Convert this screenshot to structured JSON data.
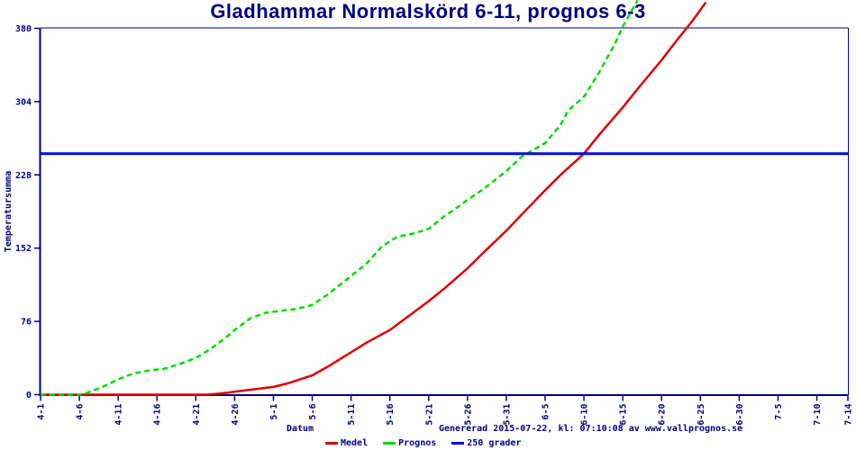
{
  "page": {
    "background": "#ffffff"
  },
  "chart_data": {
    "type": "line",
    "title": "Gladhammar Normalskörd 6-11, prognos 6-3",
    "xlabel": "Datum",
    "ylabel": "Temperatursumma",
    "footer": "Genererad 2015-07-22, kl: 07:10:08 av www.vallprognos.se",
    "ylim": [
      0,
      380
    ],
    "y_ticks": [
      0,
      76,
      152,
      228,
      304,
      380
    ],
    "x_axis_unit": "days since April 1",
    "x_tick_days": [
      0,
      5,
      10,
      15,
      20,
      25,
      30,
      35,
      40,
      45,
      50,
      55,
      60,
      65,
      70,
      75,
      80,
      85,
      90,
      95,
      100,
      104
    ],
    "x_tick_labels": [
      "4-1",
      "4-6",
      "4-11",
      "4-16",
      "4-21",
      "4-26",
      "5-1",
      "5-6",
      "5-11",
      "5-16",
      "5-21",
      "5-26",
      "5-31",
      "6-5",
      "6-10",
      "6-15",
      "6-20",
      "6-25",
      "6-30",
      "7-5",
      "7-10",
      "7-14"
    ],
    "grid": false,
    "legend_position": "bottom",
    "colors": {
      "axis": "#000080",
      "text": "#000080",
      "medel": "#e00000",
      "prognos": "#00dd00",
      "threshold": "#0000ee"
    },
    "series": [
      {
        "name": "Medel",
        "color_key": "medel",
        "style": "solid",
        "points": [
          [
            0,
            0
          ],
          [
            5,
            0
          ],
          [
            10,
            0
          ],
          [
            15,
            0
          ],
          [
            20,
            0
          ],
          [
            21.5,
            0
          ],
          [
            23,
            1
          ],
          [
            25,
            3
          ],
          [
            27,
            5
          ],
          [
            30,
            8
          ],
          [
            32,
            12
          ],
          [
            35,
            20
          ],
          [
            37,
            29
          ],
          [
            40,
            44
          ],
          [
            42,
            54
          ],
          [
            45,
            67
          ],
          [
            47,
            79
          ],
          [
            50,
            97
          ],
          [
            52,
            110
          ],
          [
            55,
            131
          ],
          [
            57,
            147
          ],
          [
            60,
            170
          ],
          [
            62,
            187
          ],
          [
            65,
            212
          ],
          [
            67,
            228
          ],
          [
            70,
            250
          ],
          [
            72,
            270
          ],
          [
            75,
            298
          ],
          [
            77,
            318
          ],
          [
            80,
            347
          ],
          [
            82,
            368
          ],
          [
            84,
            388
          ],
          [
            85.7,
            407
          ]
        ]
      },
      {
        "name": "Prognos",
        "color_key": "prognos",
        "style": "dashed",
        "points": [
          [
            0,
            0
          ],
          [
            5,
            0
          ],
          [
            6,
            2
          ],
          [
            8,
            8
          ],
          [
            10,
            16
          ],
          [
            12,
            22
          ],
          [
            14,
            25
          ],
          [
            16,
            27
          ],
          [
            18,
            32
          ],
          [
            20,
            38
          ],
          [
            22,
            48
          ],
          [
            24,
            60
          ],
          [
            25,
            67
          ],
          [
            27,
            79
          ],
          [
            29,
            85
          ],
          [
            31,
            87
          ],
          [
            33,
            89
          ],
          [
            35,
            93
          ],
          [
            37,
            104
          ],
          [
            40,
            123
          ],
          [
            42,
            136
          ],
          [
            44,
            154
          ],
          [
            46,
            164
          ],
          [
            48,
            167
          ],
          [
            50,
            172
          ],
          [
            52,
            185
          ],
          [
            54,
            196
          ],
          [
            55,
            202
          ],
          [
            57,
            213
          ],
          [
            60,
            232
          ],
          [
            62,
            247
          ],
          [
            65,
            261
          ],
          [
            67,
            280
          ],
          [
            68,
            295
          ],
          [
            69,
            302
          ],
          [
            70,
            309
          ],
          [
            72,
            335
          ],
          [
            74,
            364
          ],
          [
            75,
            382
          ],
          [
            76.9,
            409
          ]
        ]
      },
      {
        "name": "250 grader",
        "color_key": "threshold",
        "style": "solid",
        "points": [
          [
            0,
            250
          ],
          [
            104,
            250
          ]
        ]
      }
    ]
  }
}
